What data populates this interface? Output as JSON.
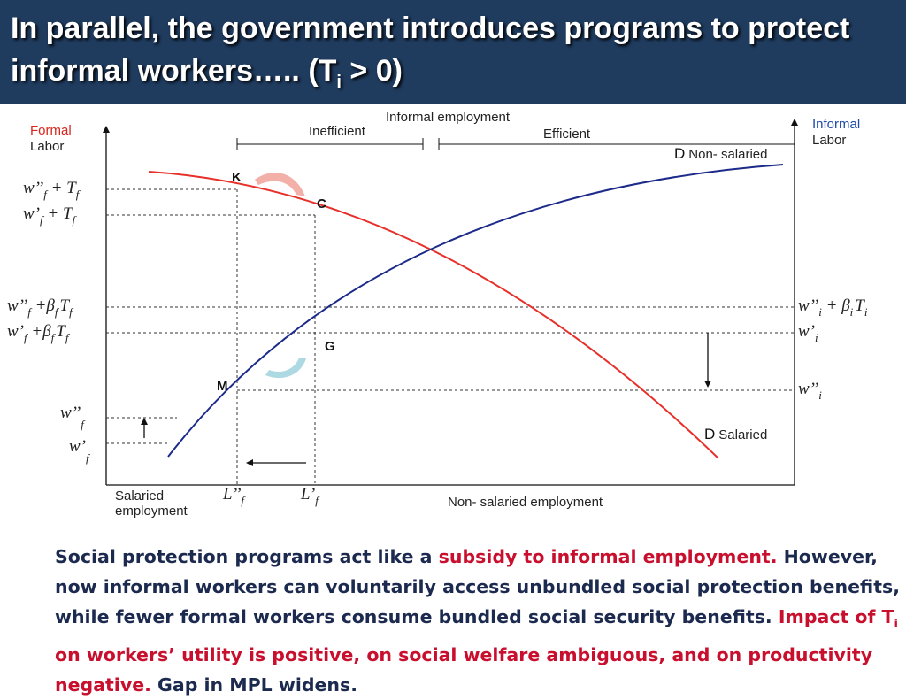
{
  "slide": {
    "title_main": "In parallel, the government introduces programs to protect informal workers….. (T",
    "title_sub": "i",
    "title_end": " > 0)",
    "colors": {
      "header_bg": "#1f3b5e",
      "curve_salaried": "#e8302a",
      "curve_informal": "#1c2a8a",
      "highlight_red": "#c8102e",
      "text_navy": "#1b2a4e"
    }
  },
  "diagram": {
    "left_axis_title_1": "Formal",
    "left_axis_title_2": "Labor",
    "right_axis_title_1": "Informal",
    "right_axis_title_2": "Labor",
    "informal_employment": "Informal employment",
    "inefficient": "Inefficient",
    "efficient": "Efficient",
    "curve_nonsalaried_D": "D",
    "curve_nonsalaried_name": "Non- salaried",
    "curve_salaried_D": "D",
    "curve_salaried_name": "Salaried",
    "point_K": "K",
    "point_C": "C",
    "point_G": "G",
    "point_M": "M",
    "x_left_1": "Salaried",
    "x_left_2": "employment",
    "x_right": "Non- salaried employment",
    "L_pp": "L’’",
    "L_p": "L’",
    "sub_f": "f",
    "sub_i": "i",
    "w_pp": "w’’",
    "w_p": "w’",
    "plus_T": " + T",
    "plus_beta": " +β",
    "beta": "β",
    "T": "T",
    "plus": " + "
  },
  "text": {
    "p1": "Social protection programs act like a ",
    "p1_red": "subsidy to informal employment.",
    "p1_b": "  However, now informal workers can voluntarily access unbundled social protection benefits, while fewer formal workers consume bundled social security benefits. ",
    "p2_red_a": "Impact of T",
    "p2_sub": "i",
    "p2_red_b": " on workers’ utility is positive, on social welfare ambiguous, and on productivity negative.",
    "p2_tail": "  Gap in MPL widens."
  }
}
